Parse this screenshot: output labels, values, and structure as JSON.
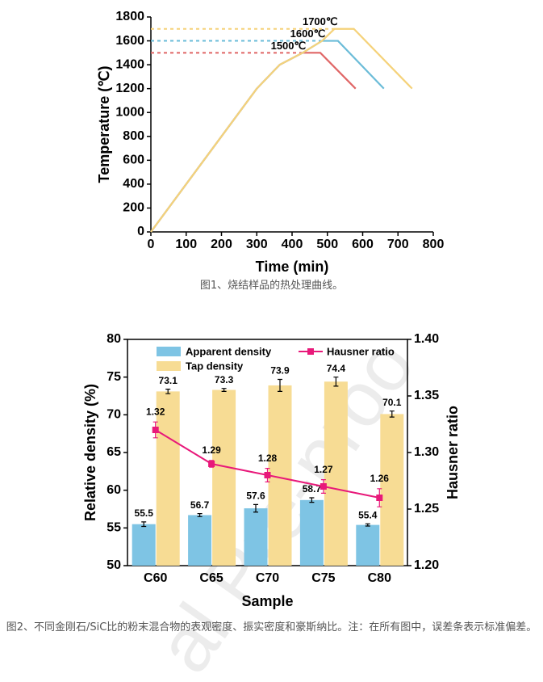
{
  "chart_data": [
    {
      "type": "line",
      "x_label": "Time (min)",
      "y_label": "Temperature (℃)",
      "xlim": [
        0,
        800
      ],
      "xticks": [
        0,
        100,
        200,
        300,
        400,
        500,
        600,
        700,
        800
      ],
      "ylim": [
        0,
        1800
      ],
      "yticks": [
        0,
        200,
        400,
        600,
        800,
        1000,
        1200,
        1400,
        1600,
        1800
      ],
      "series": [
        {
          "name": "1500℃",
          "color": "#e06666",
          "x": [
            0,
            300,
            365,
            430,
            480,
            580
          ],
          "values": [
            0,
            1200,
            1400,
            1500,
            1500,
            1200
          ]
        },
        {
          "name": "1600℃",
          "color": "#6bbcd8",
          "x": [
            0,
            300,
            365,
            430,
            485,
            530,
            660
          ],
          "values": [
            0,
            1200,
            1400,
            1500,
            1600,
            1600,
            1200
          ]
        },
        {
          "name": "1700℃",
          "color": "#f5d27a",
          "x": [
            0,
            300,
            365,
            430,
            485,
            520,
            575,
            740
          ],
          "values": [
            0,
            1200,
            1400,
            1500,
            1600,
            1700,
            1700,
            1200
          ]
        }
      ]
    },
    {
      "type": "bar",
      "x_label": "Sample",
      "y_label": "Relative density (%)",
      "y2_label": "Hausner ratio",
      "categories": [
        "C60",
        "C65",
        "C70",
        "C75",
        "C80"
      ],
      "ylim": [
        50,
        80
      ],
      "yticks": [
        50,
        55,
        60,
        65,
        70,
        75,
        80
      ],
      "y2lim": [
        1.2,
        1.4
      ],
      "y2ticks": [
        {
          "value": 1.2,
          "label": "1.20"
        },
        {
          "value": 1.25,
          "label": "1.25"
        },
        {
          "value": 1.3,
          "label": "1.30"
        },
        {
          "value": 1.35,
          "label": "1.35"
        },
        {
          "value": 1.4,
          "label": "1.40"
        }
      ],
      "series": [
        {
          "name": "Apparent density",
          "color": "#7ec4e4",
          "values": [
            55.5,
            56.7,
            57.6,
            58.7,
            55.4
          ],
          "errors": [
            0.3,
            0.2,
            0.5,
            0.3,
            0.15
          ]
        },
        {
          "name": "Tap density",
          "color": "#f7dc94",
          "values": [
            73.1,
            73.3,
            73.9,
            74.4,
            70.1
          ],
          "errors": [
            0.3,
            0.2,
            0.8,
            0.6,
            0.4
          ]
        },
        {
          "name": "Hausner ratio",
          "type": "line",
          "axis": "y2",
          "color": "#e8197a",
          "values": [
            1.32,
            1.29,
            1.28,
            1.27,
            1.26
          ],
          "errors": [
            0.007,
            0.003,
            0.006,
            0.006,
            0.008
          ]
        }
      ]
    }
  ],
  "captions": [
    "图1、烧结样品的热处理曲线。",
    "图2、不同金刚石/SiC比的粉末混合物的表观密度、振实密度和豪斯纳比。注：在所有图中，误差条表示标准偏差。"
  ],
  "watermark": "al Pre-proo"
}
